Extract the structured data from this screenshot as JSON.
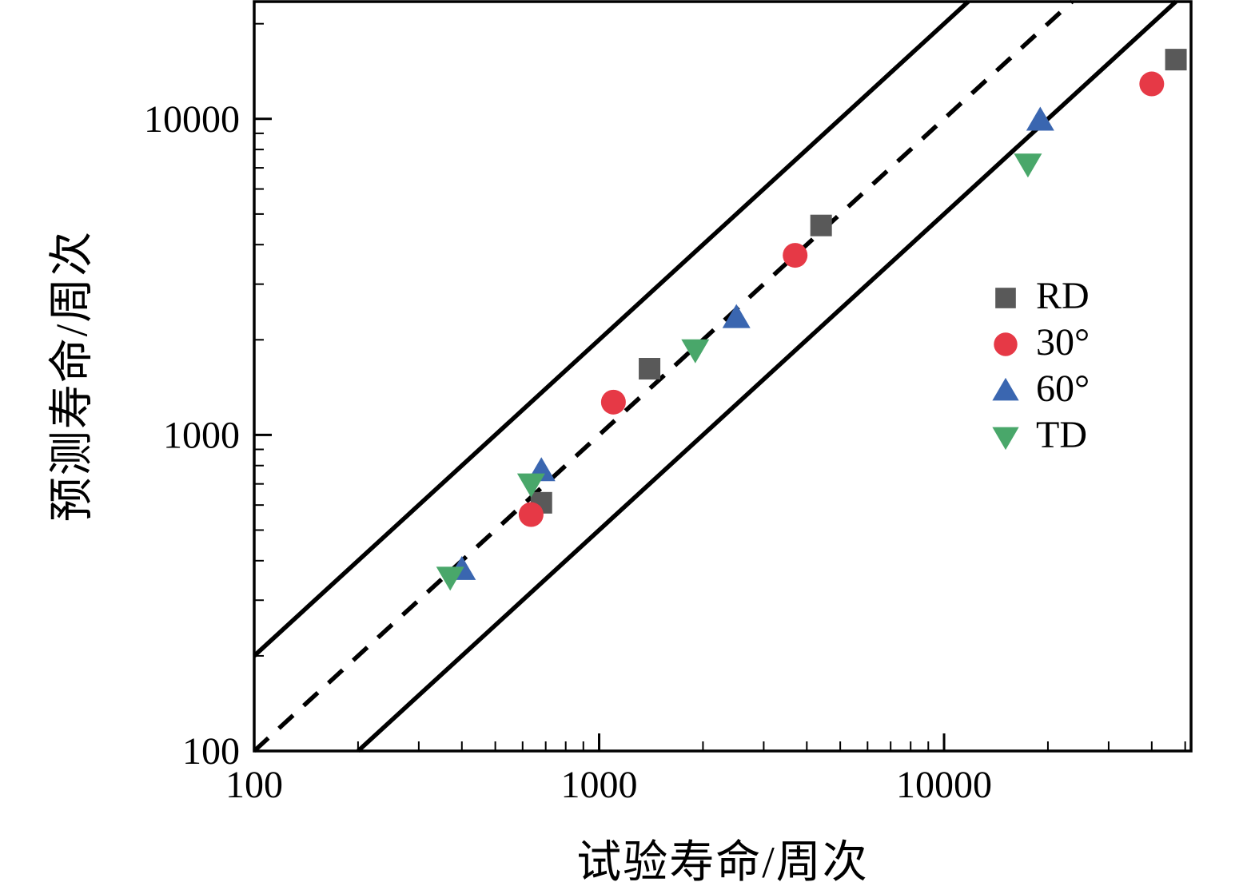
{
  "chart_data": {
    "type": "scatter",
    "title": "",
    "xlabel": "试验寿命/周次",
    "ylabel": "预测寿命/周次",
    "xscale": "log",
    "yscale": "log",
    "xlim": [
      100,
      52000
    ],
    "ylim": [
      100,
      23500
    ],
    "x_major_ticks": [
      100,
      1000,
      10000
    ],
    "y_major_ticks": [
      100,
      1000,
      10000
    ],
    "grid": false,
    "legend_position": "right-middle",
    "axis_color": "#000000",
    "reference_lines": [
      {
        "name": "parity-line",
        "equation": "y = x",
        "factor": 1,
        "style": "dashed"
      },
      {
        "name": "upper-scatter-band",
        "equation": "y = 2x",
        "factor": 2,
        "style": "solid"
      },
      {
        "name": "lower-scatter-band",
        "equation": "y = x/2",
        "factor": 0.5,
        "style": "solid"
      }
    ],
    "series": [
      {
        "name": "RD",
        "marker": "square",
        "color": "#595959",
        "points": [
          [
            680,
            610
          ],
          [
            1400,
            1620
          ],
          [
            4400,
            4600
          ],
          [
            47000,
            15400
          ]
        ]
      },
      {
        "name": "30°",
        "marker": "circle",
        "color": "#e63946",
        "points": [
          [
            635,
            560
          ],
          [
            1100,
            1270
          ],
          [
            3700,
            3700
          ],
          [
            40000,
            12900
          ]
        ]
      },
      {
        "name": "60°",
        "marker": "triangle-up",
        "color": "#3a66b0",
        "points": [
          [
            400,
            375
          ],
          [
            680,
            770
          ],
          [
            2500,
            2350
          ],
          [
            19000,
            9900
          ]
        ]
      },
      {
        "name": "TD",
        "marker": "triangle-down",
        "color": "#49a76a",
        "points": [
          [
            370,
            355
          ],
          [
            635,
            700
          ],
          [
            1900,
            1860
          ],
          [
            17500,
            7200
          ]
        ]
      }
    ]
  }
}
